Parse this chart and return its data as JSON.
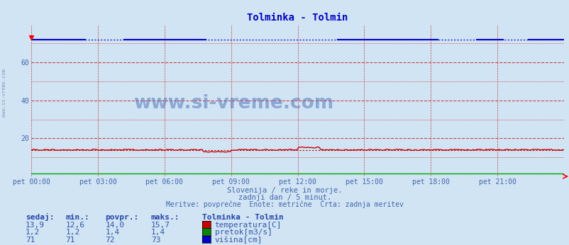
{
  "title": "Tolminka - Tolmin",
  "title_color": "#0000cc",
  "bg_color": "#d0e4f4",
  "plot_bg_color": "#d0e4f4",
  "watermark": "www.si-vreme.com",
  "subtitle1": "Slovenija / reke in morje.",
  "subtitle2": "zadnji dan / 5 minut.",
  "subtitle3": "Meritve: povprečne  Enote: metrične  Črta: zadnja meritev",
  "xlabel_color": "#4466aa",
  "xticks": [
    "pet 00:00",
    "pet 03:00",
    "pet 06:00",
    "pet 09:00",
    "pet 12:00",
    "pet 15:00",
    "pet 18:00",
    "pet 21:00"
  ],
  "xtick_positions": [
    0,
    0.125,
    0.25,
    0.375,
    0.5,
    0.625,
    0.75,
    0.875
  ],
  "ylim": [
    0,
    80
  ],
  "yticks": [
    20,
    40,
    60
  ],
  "grid_color": "#cc4444",
  "n_points": 288,
  "temp_color": "#cc0000",
  "temp_avg": 14.0,
  "temp_min_val": 12.6,
  "temp_max_val": 15.7,
  "pretok_color": "#00aa00",
  "pretok_avg": 1.4,
  "visina_color": "#0000cc",
  "visina_avg": 72.0,
  "legend_title": "Tolminka - Tolmin",
  "legend_rows": [
    {
      "label": "temperatura[C]",
      "color": "#cc0000",
      "sedaj": "13,9",
      "min": "12,6",
      "povpr": "14,0",
      "maks": "15,7"
    },
    {
      "label": "pretok[m3/s]",
      "color": "#008800",
      "sedaj": "1,2",
      "min": "1,2",
      "povpr": "1,4",
      "maks": "1,4"
    },
    {
      "label": "višina[cm]",
      "color": "#0000cc",
      "sedaj": "71",
      "min": "71",
      "povpr": "72",
      "maks": "73"
    }
  ],
  "col_headers": [
    "sedaj:",
    "min.:",
    "povpr.:",
    "maks.:"
  ],
  "watermark_color": "#5577bb",
  "side_label": "www.si-vreme.com",
  "side_label_color": "#6688aa"
}
